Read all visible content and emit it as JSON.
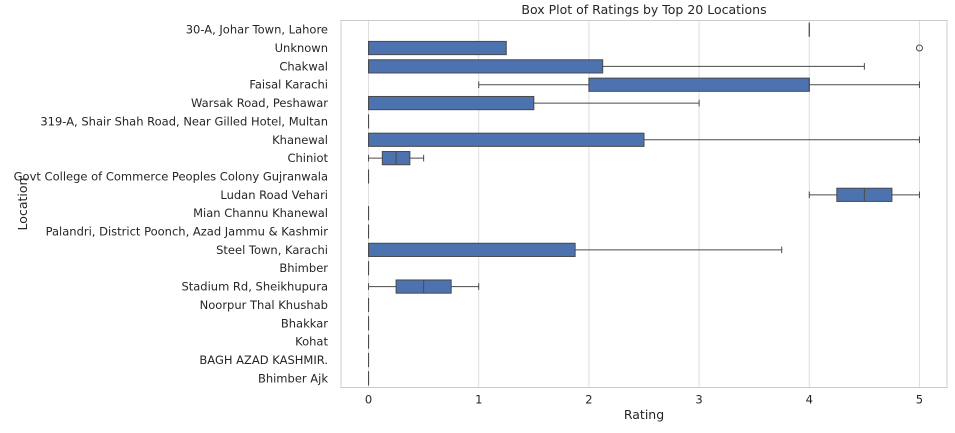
{
  "chart_data": {
    "type": "box",
    "orientation": "horizontal",
    "title": "Box Plot of Ratings by Top 20 Locations",
    "xlabel": "Rating",
    "ylabel": "Location",
    "xlim": [
      -0.25,
      5.25
    ],
    "xticks": [
      0,
      1,
      2,
      3,
      4,
      5
    ],
    "grid": "vertical",
    "box_color": "#4c72b0",
    "line_color": "#4a4a4a",
    "categories": [
      "30-A, Johar Town, Lahore",
      "Unknown",
      "Chakwal",
      "Faisal Karachi",
      "Warsak Road, Peshawar",
      "319-A, Shair Shah Road, Near Gilled Hotel, Multan",
      "Khanewal",
      "Chiniot",
      "Govt College of Commerce Peoples Colony Gujranwala",
      "Ludan Road Vehari",
      "Mian Channu Khanewal",
      "Palandri, District Poonch, Azad Jammu & Kashmir",
      "Steel Town, Karachi",
      "Bhimber",
      "Stadium Rd, Sheikhupura",
      "Noorpur Thal Khushab",
      "Bhakkar",
      "Kohat",
      "BAGH AZAD KASHMIR.",
      "Bhimber Ajk"
    ],
    "boxes": [
      {
        "whislo": 4,
        "q1": 4,
        "med": 4,
        "q3": 4,
        "whishi": 4,
        "fliers": []
      },
      {
        "whislo": 0,
        "q1": 0,
        "med": 0,
        "q3": 1.25,
        "whishi": 1.25,
        "fliers": [
          5
        ]
      },
      {
        "whislo": 0,
        "q1": 0,
        "med": 0,
        "q3": 2.125,
        "whishi": 4.5,
        "fliers": []
      },
      {
        "whislo": 1,
        "q1": 2,
        "med": 4,
        "q3": 4,
        "whishi": 5,
        "fliers": []
      },
      {
        "whislo": 0,
        "q1": 0,
        "med": 0,
        "q3": 1.5,
        "whishi": 3,
        "fliers": []
      },
      {
        "whislo": 0,
        "q1": 0,
        "med": 0,
        "q3": 0,
        "whishi": 0,
        "fliers": []
      },
      {
        "whislo": 0,
        "q1": 0,
        "med": 0,
        "q3": 2.5,
        "whishi": 5,
        "fliers": []
      },
      {
        "whislo": 0,
        "q1": 0.125,
        "med": 0.25,
        "q3": 0.375,
        "whishi": 0.5,
        "fliers": []
      },
      {
        "whislo": 0,
        "q1": 0,
        "med": 0,
        "q3": 0,
        "whishi": 0,
        "fliers": []
      },
      {
        "whislo": 4,
        "q1": 4.25,
        "med": 4.5,
        "q3": 4.75,
        "whishi": 5,
        "fliers": []
      },
      {
        "whislo": 0,
        "q1": 0,
        "med": 0,
        "q3": 0,
        "whishi": 0,
        "fliers": []
      },
      {
        "whislo": 0,
        "q1": 0,
        "med": 0,
        "q3": 0,
        "whishi": 0,
        "fliers": []
      },
      {
        "whislo": 0,
        "q1": 0,
        "med": 0,
        "q3": 1.875,
        "whishi": 3.75,
        "fliers": []
      },
      {
        "whislo": 0,
        "q1": 0,
        "med": 0,
        "q3": 0,
        "whishi": 0,
        "fliers": []
      },
      {
        "whislo": 0,
        "q1": 0.25,
        "med": 0.5,
        "q3": 0.75,
        "whishi": 1,
        "fliers": []
      },
      {
        "whislo": 0,
        "q1": 0,
        "med": 0,
        "q3": 0,
        "whishi": 0,
        "fliers": []
      },
      {
        "whislo": 0,
        "q1": 0,
        "med": 0,
        "q3": 0,
        "whishi": 0,
        "fliers": []
      },
      {
        "whislo": 0,
        "q1": 0,
        "med": 0,
        "q3": 0,
        "whishi": 0,
        "fliers": []
      },
      {
        "whislo": 0,
        "q1": 0,
        "med": 0,
        "q3": 0,
        "whishi": 0,
        "fliers": []
      },
      {
        "whislo": 0,
        "q1": 0,
        "med": 0,
        "q3": 0,
        "whishi": 0,
        "fliers": []
      }
    ]
  }
}
